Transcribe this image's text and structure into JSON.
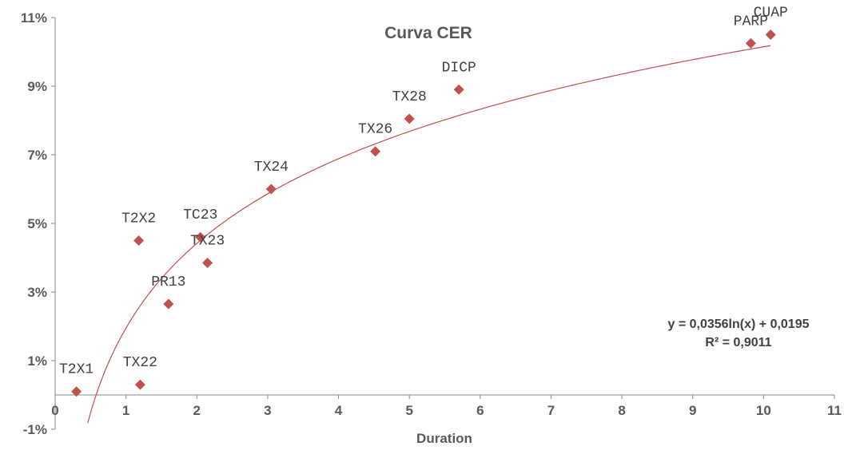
{
  "chart_data": {
    "type": "scatter",
    "title": "Curva CER",
    "xlabel": "Duration",
    "ylabel": "",
    "xlim": [
      0,
      11
    ],
    "ylim": [
      -1,
      11
    ],
    "x_ticks": [
      "0",
      "1",
      "2",
      "3",
      "4",
      "5",
      "6",
      "7",
      "8",
      "9",
      "10",
      "11"
    ],
    "y_ticks": [
      "-1%",
      "1%",
      "3%",
      "5%",
      "7%",
      "9%",
      "11%"
    ],
    "grid": false,
    "series": [
      {
        "name": "",
        "color": "#C0504D",
        "marker": "diamond",
        "points": [
          {
            "label": "T2X1",
            "x": 0.3,
            "y": 0.1
          },
          {
            "label": "TX22",
            "x": 1.2,
            "y": 0.3
          },
          {
            "label": "T2X2",
            "x": 1.18,
            "y": 4.5
          },
          {
            "label": "PR13",
            "x": 1.6,
            "y": 2.65
          },
          {
            "label": "TC23",
            "x": 2.05,
            "y": 4.6
          },
          {
            "label": "TX23",
            "x": 2.15,
            "y": 3.85
          },
          {
            "label": "TX24",
            "x": 3.05,
            "y": 6.0
          },
          {
            "label": "TX26",
            "x": 4.52,
            "y": 7.1
          },
          {
            "label": "TX28",
            "x": 5.0,
            "y": 8.05
          },
          {
            "label": "DICP",
            "x": 5.7,
            "y": 8.9
          },
          {
            "label": "PARP",
            "x": 9.82,
            "y": 10.25
          },
          {
            "label": "CUAP",
            "x": 10.1,
            "y": 10.5
          }
        ]
      }
    ],
    "trendline": {
      "type": "logarithmic",
      "color": "#C0504D",
      "equation": "y = 0,0356ln(x) + 0,0195",
      "r_squared": "R² = 0,9011",
      "a": 0.0356,
      "b": 0.0195
    }
  }
}
